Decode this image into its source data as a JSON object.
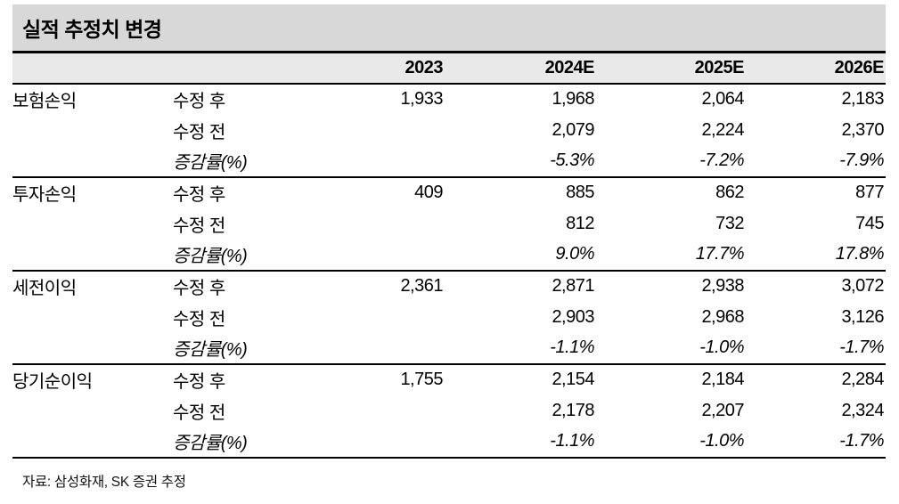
{
  "title": "실적 추정치 변경",
  "source": "자료: 삼성화재, SK 증권 추정",
  "colors": {
    "title_band_bg": "#d8d8d8",
    "header_row_bg": "#e9e9e9",
    "rule_color": "#000000",
    "text_color": "#000000"
  },
  "table": {
    "columns": [
      "",
      "",
      "2023",
      "2024E",
      "2025E",
      "2026E"
    ],
    "groups": [
      {
        "label": "보험손익",
        "rows": [
          {
            "label": "수정 후",
            "italic": false,
            "values": [
              "1,933",
              "1,968",
              "2,064",
              "2,183"
            ]
          },
          {
            "label": "수정 전",
            "italic": false,
            "values": [
              "",
              "2,079",
              "2,224",
              "2,370"
            ]
          },
          {
            "label": "증감률(%)",
            "italic": true,
            "values": [
              "",
              "-5.3%",
              "-7.2%",
              "-7.9%"
            ]
          }
        ]
      },
      {
        "label": "투자손익",
        "rows": [
          {
            "label": "수정 후",
            "italic": false,
            "values": [
              "409",
              "885",
              "862",
              "877"
            ]
          },
          {
            "label": "수정 전",
            "italic": false,
            "values": [
              "",
              "812",
              "732",
              "745"
            ]
          },
          {
            "label": "증감률(%)",
            "italic": true,
            "values": [
              "",
              "9.0%",
              "17.7%",
              "17.8%"
            ]
          }
        ]
      },
      {
        "label": "세전이익",
        "rows": [
          {
            "label": "수정 후",
            "italic": false,
            "values": [
              "2,361",
              "2,871",
              "2,938",
              "3,072"
            ]
          },
          {
            "label": "수정 전",
            "italic": false,
            "values": [
              "",
              "2,903",
              "2,968",
              "3,126"
            ]
          },
          {
            "label": "증감률(%)",
            "italic": true,
            "values": [
              "",
              "-1.1%",
              "-1.0%",
              "-1.7%"
            ]
          }
        ]
      },
      {
        "label": "당기순이익",
        "rows": [
          {
            "label": "수정 후",
            "italic": false,
            "values": [
              "1,755",
              "2,154",
              "2,184",
              "2,284"
            ]
          },
          {
            "label": "수정 전",
            "italic": false,
            "values": [
              "",
              "2,178",
              "2,207",
              "2,324"
            ]
          },
          {
            "label": "증감률(%)",
            "italic": true,
            "values": [
              "",
              "-1.1%",
              "-1.0%",
              "-1.7%"
            ]
          }
        ]
      }
    ]
  }
}
